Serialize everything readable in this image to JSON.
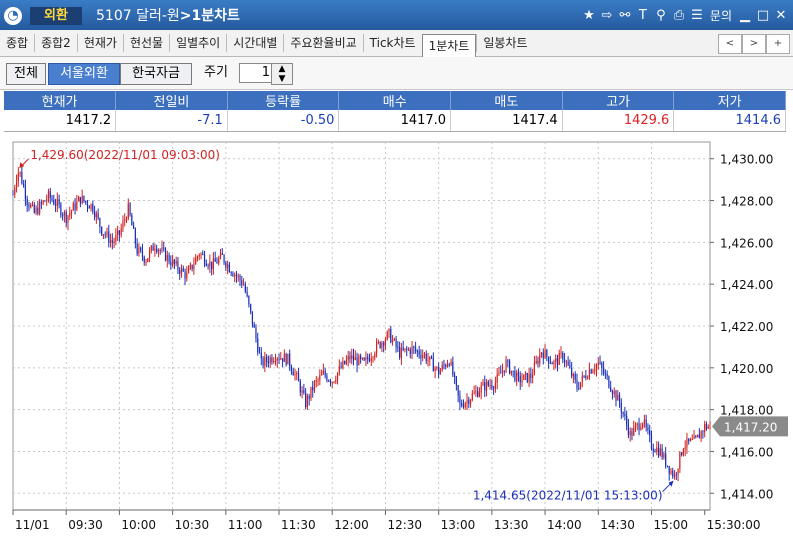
{
  "titlebar": {
    "badge": "외환",
    "code": "5107",
    "name": "달러-원",
    "section": ">1분차트",
    "menu_label": "문의",
    "icons": [
      "star-icon",
      "export-icon",
      "link-icon",
      "text-icon",
      "pin-icon",
      "print-icon",
      "list-icon"
    ]
  },
  "tabs": [
    {
      "label": "종합",
      "active": false
    },
    {
      "label": "종합2",
      "active": false
    },
    {
      "label": "현재가",
      "active": false
    },
    {
      "label": "현선물",
      "active": false
    },
    {
      "label": "일별추이",
      "active": false
    },
    {
      "label": "시간대별",
      "active": false
    },
    {
      "label": "주요환율비교",
      "active": false
    },
    {
      "label": "Tick차트",
      "active": false
    },
    {
      "label": "1분차트",
      "active": true
    },
    {
      "label": "일봉차트",
      "active": false
    }
  ],
  "toolbar": {
    "markets": [
      {
        "label": "전체",
        "selected": false
      },
      {
        "label": "서울외환",
        "selected": true
      },
      {
        "label": "한국자금",
        "selected": false
      }
    ],
    "period_label": "주기",
    "period_value": "1"
  },
  "quote": {
    "headers": [
      "현재가",
      "전일비",
      "등락률",
      "매수",
      "매도",
      "고가",
      "저가"
    ],
    "values": [
      "1417.2",
      "-7.1",
      "-0.50",
      "1417.0",
      "1417.4",
      "1429.6",
      "1414.6"
    ],
    "up_color": "#d22222",
    "down_color": "#1a3eb8"
  },
  "chart_data": {
    "type": "candlestick",
    "x_labels": [
      "11/01",
      "09:30",
      "10:00",
      "10:30",
      "11:00",
      "11:30",
      "12:00",
      "12:30",
      "13:00",
      "13:30",
      "14:00",
      "14:30",
      "15:00",
      "15:30:00"
    ],
    "y_labels": [
      "1,430.00",
      "1,428.00",
      "1,426.00",
      "1,424.00",
      "1,422.00",
      "1,420.00",
      "1,418.00",
      "1,416.00",
      "1,414.00"
    ],
    "ylim": [
      1413.2,
      1430.8
    ],
    "x_range_minutes": [
      0,
      393
    ],
    "grid": true,
    "high_annotation": {
      "text": "1,429.60(2022/11/01 09:03:00)",
      "t": 3,
      "value": 1429.6
    },
    "low_annotation": {
      "text": "1,414.65(2022/11/01 15:13:00)",
      "t": 373,
      "value": 1414.65
    },
    "current_label": "1,417.20",
    "current_value": 1417.2,
    "path_minutes": [
      0,
      3,
      8,
      12,
      20,
      25,
      30,
      38,
      45,
      50,
      56,
      60,
      65,
      70,
      75,
      80,
      90,
      98,
      105,
      112,
      118,
      122,
      130,
      135,
      140,
      148,
      155,
      160,
      165,
      170,
      175,
      180,
      185,
      190,
      198,
      205,
      212,
      218,
      225,
      232,
      240,
      246,
      252,
      258,
      265,
      272,
      278,
      285,
      292,
      298,
      305,
      310,
      318,
      325,
      330,
      336,
      342,
      348,
      355,
      360,
      365,
      370,
      373,
      378,
      385,
      390
    ],
    "path_values": [
      1428.3,
      1429.6,
      1428.0,
      1427.4,
      1428.2,
      1427.8,
      1427.2,
      1428.1,
      1427.7,
      1426.6,
      1426.0,
      1426.4,
      1427.6,
      1425.6,
      1425.2,
      1425.9,
      1425.0,
      1424.4,
      1425.5,
      1424.9,
      1425.3,
      1424.8,
      1424.0,
      1422.2,
      1420.2,
      1420.6,
      1420.4,
      1419.5,
      1418.3,
      1419.2,
      1419.7,
      1419.4,
      1420.0,
      1420.5,
      1420.2,
      1421.0,
      1421.6,
      1420.7,
      1420.9,
      1420.6,
      1419.8,
      1420.4,
      1418.2,
      1418.6,
      1419.1,
      1419.3,
      1420.2,
      1419.4,
      1419.6,
      1420.8,
      1420.2,
      1420.6,
      1419.1,
      1419.9,
      1420.2,
      1419.3,
      1418.3,
      1416.8,
      1417.5,
      1416.3,
      1416.0,
      1415.2,
      1414.8,
      1416.3,
      1416.5,
      1417.2
    ],
    "up_color": "#d22222",
    "down_color": "#1a2fb8"
  }
}
